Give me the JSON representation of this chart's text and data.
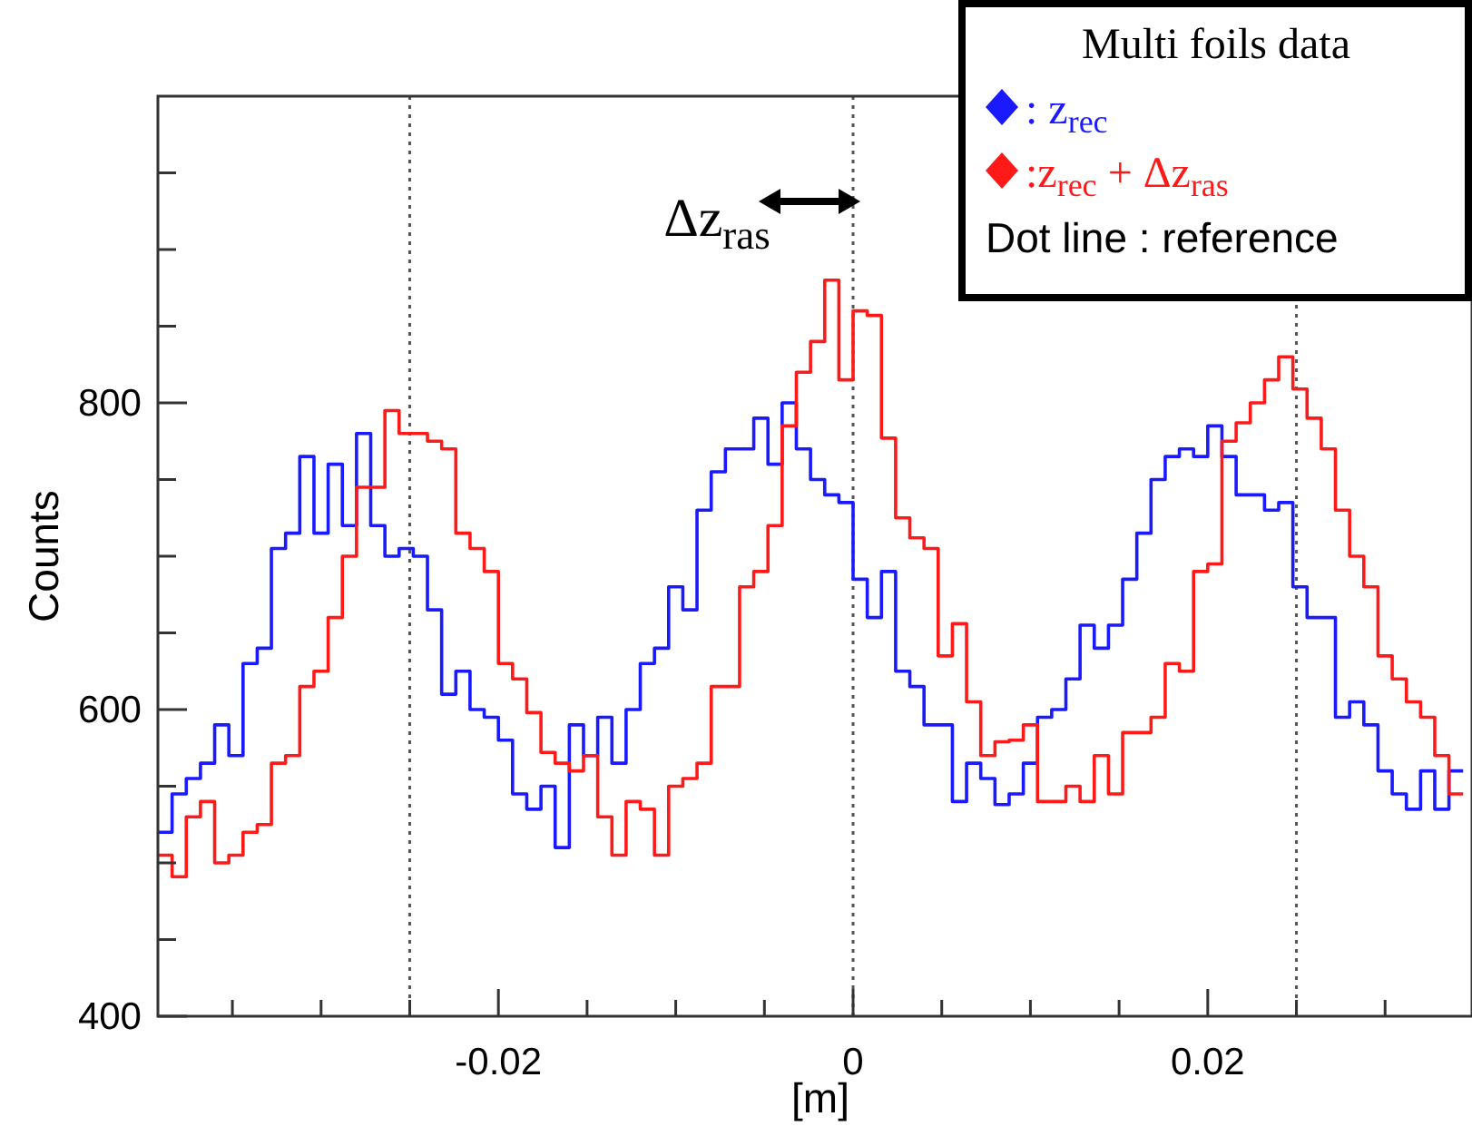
{
  "chart_data": {
    "type": "histogram",
    "xlabel": "[m]",
    "ylabel": "Counts",
    "legend_title": "Multi foils data",
    "bins": [
      -0.0392,
      -0.0384,
      -0.0376,
      -0.0368,
      -0.036,
      -0.0352,
      -0.0344,
      -0.0336,
      -0.0328,
      -0.032,
      -0.0312,
      -0.0304,
      -0.0296,
      -0.0288,
      -0.028,
      -0.0272,
      -0.0264,
      -0.0256,
      -0.0248,
      -0.024,
      -0.0232,
      -0.0224,
      -0.0216,
      -0.0208,
      -0.02,
      -0.0192,
      -0.0184,
      -0.0176,
      -0.0168,
      -0.016,
      -0.0152,
      -0.0144,
      -0.0136,
      -0.0128,
      -0.012,
      -0.0112,
      -0.0104,
      -0.0096,
      -0.0088,
      -0.008,
      -0.0072,
      -0.0064,
      -0.0056,
      -0.0048,
      -0.004,
      -0.0032,
      -0.0024,
      -0.0016,
      -0.0008,
      0,
      0.0008,
      0.0016,
      0.0024,
      0.0032,
      0.004,
      0.0048,
      0.0056,
      0.0064,
      0.0072,
      0.008,
      0.0088,
      0.0096,
      0.0104,
      0.0112,
      0.012,
      0.0128,
      0.0136,
      0.0144,
      0.0152,
      0.016,
      0.0168,
      0.0176,
      0.0184,
      0.0192,
      0.02,
      0.0208,
      0.0216,
      0.0224,
      0.0232,
      0.024,
      0.0248,
      0.0256,
      0.0264,
      0.0272,
      0.028,
      0.0288,
      0.0296,
      0.0304,
      0.0312,
      0.032,
      0.0328,
      0.0336,
      0.0344
    ],
    "series": [
      {
        "name": ": z$_{rec}$",
        "color": "#1a1aff",
        "values": [
          520,
          545,
          555,
          565,
          590,
          570,
          630,
          640,
          705,
          715,
          765,
          715,
          760,
          720,
          780,
          720,
          700,
          705,
          700,
          665,
          610,
          625,
          600,
          595,
          580,
          545,
          535,
          550,
          510,
          590,
          570,
          595,
          565,
          600,
          630,
          640,
          680,
          665,
          730,
          755,
          770,
          770,
          790,
          760,
          800,
          770,
          750,
          740,
          735,
          685,
          660,
          690,
          625,
          615,
          590,
          590,
          540,
          565,
          555,
          538,
          545,
          565,
          595,
          600,
          620,
          655,
          640,
          655,
          685,
          715,
          750,
          765,
          770,
          765,
          785,
          765,
          740,
          740,
          730,
          735,
          680,
          660,
          660,
          595,
          605,
          590,
          560,
          545,
          535,
          560,
          535,
          560
        ]
      },
      {
        "name": ":z$_{rec}$ + Δz$_{ras}$",
        "color": "#ff1a1a",
        "values": [
          505,
          491,
          530,
          540,
          500,
          505,
          520,
          525,
          565,
          570,
          615,
          625,
          660,
          700,
          745,
          745,
          795,
          780,
          780,
          775,
          770,
          715,
          705,
          690,
          630,
          620,
          598,
          572,
          565,
          560,
          570,
          530,
          505,
          540,
          535,
          505,
          550,
          555,
          565,
          615,
          615,
          680,
          690,
          720,
          785,
          820,
          840,
          880,
          815,
          860,
          857,
          777,
          725,
          712,
          705,
          635,
          656,
          605,
          570,
          579,
          580,
          590,
          540,
          540,
          550,
          540,
          570,
          545,
          585,
          585,
          595,
          630,
          625,
          690,
          695,
          775,
          787,
          800,
          815,
          830,
          809,
          790,
          770,
          730,
          700,
          680,
          635,
          620,
          605,
          595,
          570,
          545
        ]
      }
    ],
    "xlim": [
      -0.0392,
      0.0349
    ],
    "xticks": [
      {
        "value": -0.035,
        "label": null
      },
      {
        "value": -0.03,
        "label": null
      },
      {
        "value": -0.025,
        "label": null
      },
      -0.02,
      {
        "value": -0.015,
        "label": null
      },
      {
        "value": -0.01,
        "label": null
      },
      {
        "value": -0.005,
        "label": null
      },
      0,
      {
        "value": 0.005,
        "label": null
      },
      {
        "value": 0.01,
        "label": null
      },
      {
        "value": 0.015,
        "label": null
      },
      0.02,
      {
        "value": 0.025,
        "label": null
      },
      {
        "value": 0.03,
        "label": null
      }
    ],
    "ylim": [
      400,
      1000
    ],
    "yticks": [
      400,
      {
        "value": 450,
        "label": null
      },
      {
        "value": 500,
        "label": null
      },
      {
        "value": 550,
        "label": null
      },
      600,
      {
        "value": 650,
        "label": null
      },
      {
        "value": 700,
        "label": null
      },
      {
        "value": 750,
        "label": null
      },
      800,
      {
        "value": 850,
        "label": null
      },
      {
        "value": 900,
        "label": null
      },
      {
        "value": 950,
        "label": null
      }
    ],
    "ref_lines": [
      {
        "axis": "x",
        "value": -0.025,
        "color": "#555555",
        "line_style": "dotted"
      },
      {
        "axis": "x",
        "value": 0,
        "color": "#555555",
        "line_style": "dotted"
      },
      {
        "axis": "x",
        "value": 0.025,
        "color": "#555555",
        "line_style": "dotted"
      }
    ],
    "annotations": [
      "Dot line : reference",
      "Δz$_{ras}$"
    ],
    "legend": "top right",
    "grid": false
  }
}
